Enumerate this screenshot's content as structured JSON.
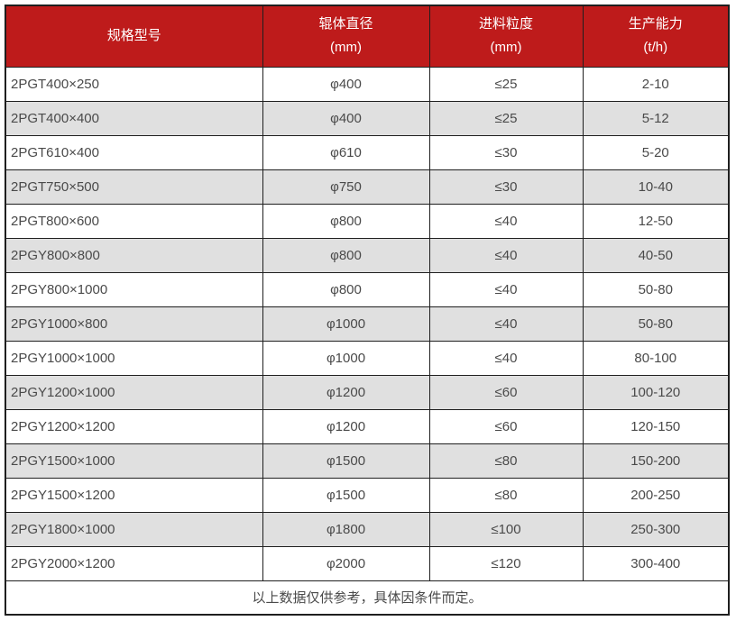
{
  "table": {
    "columns": [
      {
        "title": "规格型号",
        "unit": ""
      },
      {
        "title": "辊体直径",
        "unit": "(mm)"
      },
      {
        "title": "进料粒度",
        "unit": "(mm)"
      },
      {
        "title": "生产能力",
        "unit": "(t/h)"
      }
    ],
    "rows": [
      [
        "2PGT400×250",
        "φ400",
        "≤25",
        "2-10"
      ],
      [
        "2PGT400×400",
        "φ400",
        "≤25",
        "5-12"
      ],
      [
        "2PGT610×400",
        "φ610",
        "≤30",
        "5-20"
      ],
      [
        "2PGT750×500",
        "φ750",
        "≤30",
        "10-40"
      ],
      [
        "2PGT800×600",
        "φ800",
        "≤40",
        "12-50"
      ],
      [
        "2PGY800×800",
        "φ800",
        "≤40",
        "40-50"
      ],
      [
        "2PGY800×1000",
        "φ800",
        "≤40",
        "50-80"
      ],
      [
        "2PGY1000×800",
        "φ1000",
        "≤40",
        "50-80"
      ],
      [
        "2PGY1000×1000",
        "φ1000",
        "≤40",
        "80-100"
      ],
      [
        "2PGY1200×1000",
        "φ1200",
        "≤60",
        "100-120"
      ],
      [
        "2PGY1200×1200",
        "φ1200",
        "≤60",
        "120-150"
      ],
      [
        "2PGY1500×1000",
        "φ1500",
        "≤80",
        "150-200"
      ],
      [
        "2PGY1500×1200",
        "φ1500",
        "≤80",
        "200-250"
      ],
      [
        "2PGY1800×1000",
        "φ1800",
        "≤100",
        "250-300"
      ],
      [
        "2PGY2000×1200",
        "φ2000",
        "≤120",
        "300-400"
      ]
    ],
    "footnote": "以上数据仅供参考，具体因条件而定。"
  },
  "colors": {
    "header_bg": "#be1b1b",
    "header_text": "#ffffff",
    "stripe_bg": "#e0e0e0",
    "body_text": "#4a4a4a",
    "border": "#1f1f1f"
  },
  "chart_data": {
    "type": "table",
    "title": "",
    "columns": [
      "规格型号",
      "辊体直径 (mm)",
      "进料粒度 (mm)",
      "生产能力 (t/h)"
    ],
    "rows": [
      [
        "2PGT400×250",
        "φ400",
        "≤25",
        "2-10"
      ],
      [
        "2PGT400×400",
        "φ400",
        "≤25",
        "5-12"
      ],
      [
        "2PGT610×400",
        "φ610",
        "≤30",
        "5-20"
      ],
      [
        "2PGT750×500",
        "φ750",
        "≤30",
        "10-40"
      ],
      [
        "2PGT800×600",
        "φ800",
        "≤40",
        "12-50"
      ],
      [
        "2PGY800×800",
        "φ800",
        "≤40",
        "40-50"
      ],
      [
        "2PGY800×1000",
        "φ800",
        "≤40",
        "50-80"
      ],
      [
        "2PGY1000×800",
        "φ1000",
        "≤40",
        "50-80"
      ],
      [
        "2PGY1000×1000",
        "φ1000",
        "≤40",
        "80-100"
      ],
      [
        "2PGY1200×1000",
        "φ1200",
        "≤60",
        "100-120"
      ],
      [
        "2PGY1200×1200",
        "φ1200",
        "≤60",
        "120-150"
      ],
      [
        "2PGY1500×1000",
        "φ1500",
        "≤80",
        "150-200"
      ],
      [
        "2PGY1500×1200",
        "φ1500",
        "≤80",
        "200-250"
      ],
      [
        "2PGY1800×1000",
        "φ1800",
        "≤100",
        "250-300"
      ],
      [
        "2PGY2000×1200",
        "φ2000",
        "≤120",
        "300-400"
      ]
    ],
    "footnote": "以上数据仅供参考，具体因条件而定。"
  }
}
